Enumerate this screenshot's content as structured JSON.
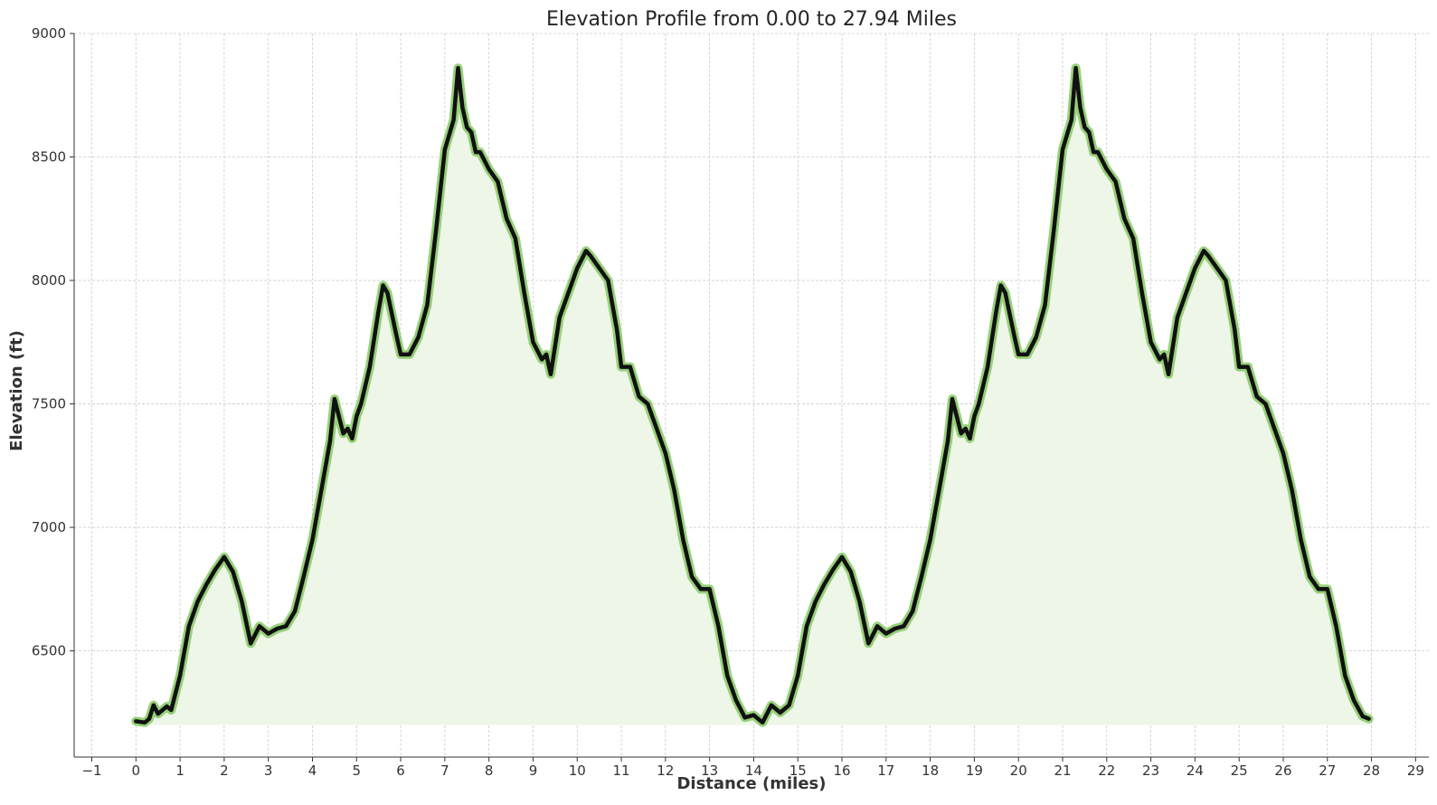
{
  "chart_data": {
    "type": "area",
    "title": "Elevation Profile from 0.00 to 27.94 Miles",
    "xlabel": "Distance (miles)",
    "ylabel": "Elevation (ft)",
    "xlim": [
      -1.4,
      29.3
    ],
    "ylim": [
      6070,
      9000
    ],
    "fill_base": 6200,
    "xticks": [
      -1,
      0,
      1,
      2,
      3,
      4,
      5,
      6,
      7,
      8,
      9,
      10,
      11,
      12,
      13,
      14,
      15,
      16,
      17,
      18,
      19,
      20,
      21,
      22,
      23,
      24,
      25,
      26,
      27,
      28,
      29
    ],
    "xtick_labels": [
      "−1",
      "0",
      "1",
      "2",
      "3",
      "4",
      "5",
      "6",
      "7",
      "8",
      "9",
      "10",
      "11",
      "12",
      "13",
      "14",
      "15",
      "16",
      "17",
      "18",
      "19",
      "20",
      "21",
      "22",
      "23",
      "24",
      "25",
      "26",
      "27",
      "28",
      "29"
    ],
    "yticks": [
      6500,
      7000,
      7500,
      8000,
      8500,
      9000
    ],
    "ytick_labels": [
      "6500",
      "7000",
      "7500",
      "8000",
      "8500",
      "9000"
    ],
    "grid": true,
    "colors": {
      "line": "#111111",
      "halo": "#8ccc6c",
      "fill": "#eef6e8"
    },
    "x": [
      0.0,
      0.2,
      0.3,
      0.4,
      0.5,
      0.7,
      0.8,
      1.0,
      1.2,
      1.4,
      1.6,
      1.8,
      2.0,
      2.2,
      2.4,
      2.6,
      2.8,
      3.0,
      3.2,
      3.4,
      3.6,
      3.8,
      4.0,
      4.2,
      4.4,
      4.5,
      4.7,
      4.8,
      4.9,
      5.0,
      5.1,
      5.3,
      5.5,
      5.6,
      5.7,
      5.9,
      6.0,
      6.2,
      6.4,
      6.6,
      6.8,
      7.0,
      7.2,
      7.3,
      7.4,
      7.5,
      7.6,
      7.7,
      7.8,
      8.0,
      8.2,
      8.4,
      8.6,
      8.8,
      9.0,
      9.2,
      9.3,
      9.4,
      9.6,
      9.8,
      10.0,
      10.2,
      10.3,
      10.5,
      10.7,
      10.9,
      11.0,
      11.2,
      11.4,
      11.6,
      11.8,
      12.0,
      12.2,
      12.4,
      12.6,
      12.8,
      13.0,
      13.2,
      13.4,
      13.6,
      13.8,
      14.0,
      14.2,
      14.4,
      14.6,
      14.8,
      15.0,
      15.2,
      15.4,
      15.6,
      15.8,
      16.0,
      16.2,
      16.4,
      16.6,
      16.8,
      17.0,
      17.2,
      17.4,
      17.6,
      17.8,
      18.0,
      18.2,
      18.4,
      18.5,
      18.7,
      18.8,
      18.9,
      19.0,
      19.1,
      19.3,
      19.5,
      19.6,
      19.7,
      19.9,
      20.0,
      20.2,
      20.4,
      20.6,
      20.8,
      21.0,
      21.2,
      21.3,
      21.4,
      21.5,
      21.6,
      21.7,
      21.8,
      22.0,
      22.2,
      22.4,
      22.6,
      22.8,
      23.0,
      23.2,
      23.3,
      23.4,
      23.6,
      23.8,
      24.0,
      24.2,
      24.3,
      24.5,
      24.7,
      24.9,
      25.0,
      25.2,
      25.4,
      25.6,
      25.8,
      26.0,
      26.2,
      26.4,
      26.6,
      26.8,
      27.0,
      27.2,
      27.4,
      27.6,
      27.8,
      27.94
    ],
    "y": [
      6215,
      6210,
      6225,
      6280,
      6245,
      6275,
      6260,
      6400,
      6600,
      6700,
      6770,
      6830,
      6880,
      6820,
      6700,
      6530,
      6600,
      6570,
      6590,
      6600,
      6660,
      6800,
      6950,
      7150,
      7350,
      7520,
      7380,
      7400,
      7360,
      7450,
      7500,
      7650,
      7880,
      7980,
      7950,
      7780,
      7700,
      7700,
      7770,
      7900,
      8200,
      8530,
      8650,
      8860,
      8700,
      8620,
      8600,
      8520,
      8520,
      8450,
      8400,
      8250,
      8170,
      7950,
      7750,
      7680,
      7700,
      7620,
      7850,
      7950,
      8050,
      8120,
      8100,
      8050,
      8000,
      7800,
      7650,
      7650,
      7530,
      7500,
      7400,
      7300,
      7150,
      6950,
      6800,
      6750,
      6750,
      6600,
      6400,
      6300,
      6230,
      6240,
      6210,
      6280,
      6250,
      6280,
      6400,
      6600,
      6700,
      6770,
      6830,
      6880,
      6820,
      6700,
      6530,
      6600,
      6570,
      6590,
      6600,
      6660,
      6800,
      6950,
      7150,
      7350,
      7520,
      7380,
      7400,
      7360,
      7450,
      7500,
      7650,
      7880,
      7980,
      7950,
      7780,
      7700,
      7700,
      7770,
      7900,
      8200,
      8530,
      8650,
      8860,
      8700,
      8620,
      8600,
      8520,
      8520,
      8450,
      8400,
      8250,
      8170,
      7950,
      7750,
      7680,
      7700,
      7620,
      7850,
      7950,
      8050,
      8120,
      8100,
      8050,
      8000,
      7800,
      7650,
      7650,
      7530,
      7500,
      7400,
      7300,
      7150,
      6950,
      6800,
      6750,
      6750,
      6600,
      6400,
      6300,
      6235,
      6225
    ]
  }
}
